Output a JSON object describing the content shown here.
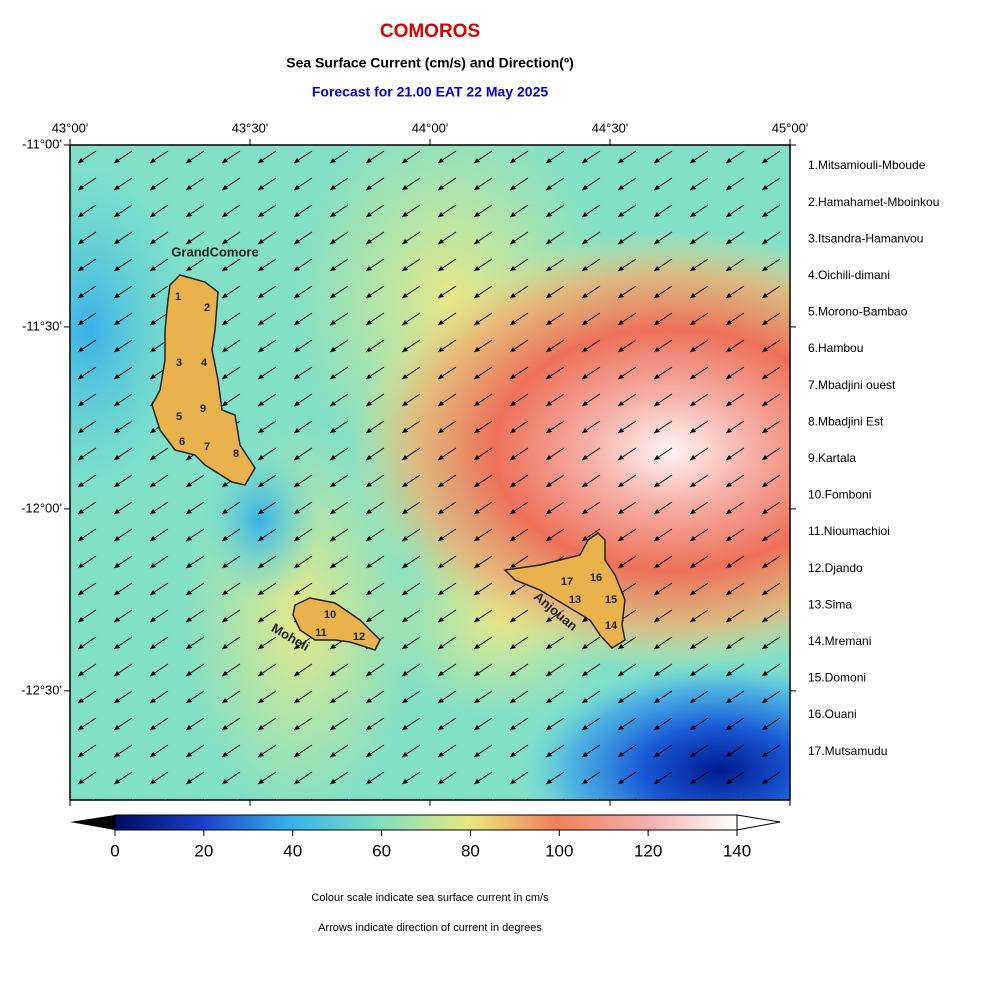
{
  "header": {
    "title": "COMOROS",
    "subtitle": "Sea Surface Current (cm/s) and Direction(º)",
    "forecast": "Forecast for  21.00 EAT 22 May 2025"
  },
  "map": {
    "xlim": [
      43,
      45
    ],
    "ylim": [
      -12.8,
      -11
    ],
    "xticks": [
      {
        "value": 43,
        "label": "43°00'"
      },
      {
        "value": 43.5,
        "label": "43°30'"
      },
      {
        "value": 44,
        "label": "44°00'"
      },
      {
        "value": 44.5,
        "label": "44°30'"
      },
      {
        "value": 45,
        "label": "45°00'"
      }
    ],
    "yticks": [
      {
        "value": -11,
        "label": "-11°00'"
      },
      {
        "value": -11.5,
        "label": "-11°30'"
      },
      {
        "value": -12,
        "label": "-12°00'"
      },
      {
        "value": -12.5,
        "label": "-12°30'"
      }
    ],
    "islands": [
      "GrandComore",
      "Moheli",
      "Anjouan"
    ],
    "region_markers": [
      "1",
      "2",
      "3",
      "4",
      "5",
      "6",
      "7",
      "8",
      "9",
      "10",
      "11",
      "12",
      "13",
      "14",
      "15",
      "16",
      "17"
    ]
  },
  "regions": [
    "1.Mitsamiouli-Mboude",
    "2.Hamahamet-Mboinkou",
    "3.Itsandra-Hamanvou",
    "4.Oichili-dimani",
    "5.Morono-Bambao",
    "6.Hambou",
    "7.Mbadjini ouest",
    "8.Mbadjini Est",
    "9.Kartala",
    "10.Fomboni",
    "11.Nioumachioi",
    "12.Djando",
    "13.Sima",
    "14.Mremani",
    "15.Domoni",
    "16.Ouani",
    "17.Mutsamudu"
  ],
  "colorbar": {
    "lim": [
      0,
      140
    ],
    "ticks": [
      0,
      20,
      40,
      60,
      80,
      100,
      120,
      140
    ]
  },
  "notes": [
    "Colour scale indicate sea surface current in cm/s",
    "Arrows indicate direction of current in degrees"
  ]
}
